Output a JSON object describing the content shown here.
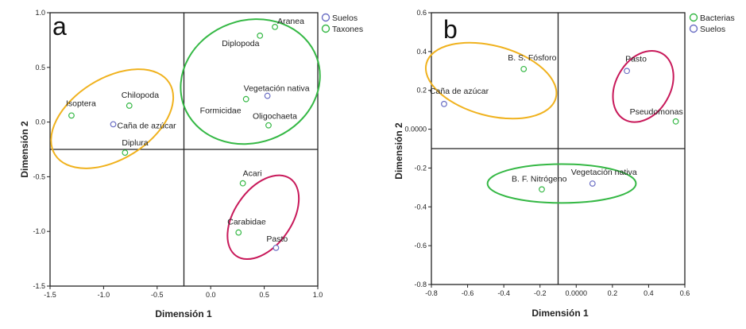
{
  "chart_data": [
    {
      "type": "scatter",
      "panel_label": "a",
      "xlabel": "Dimensión 1",
      "ylabel": "Dimensión 2",
      "xlim": [
        -1.5,
        1.0
      ],
      "ylim": [
        -1.5,
        1.0
      ],
      "xticks": [
        -1.5,
        -1.0,
        -0.5,
        0.0,
        0.5,
        1.0
      ],
      "xtick_labels": [
        "-1.5",
        "-1.0",
        "-0.5",
        "0.0",
        "0.5",
        "1.0"
      ],
      "yticks": [
        -1.5,
        -1.0,
        -0.5,
        0.0,
        0.5,
        1.0
      ],
      "ytick_labels": [
        "-1.5",
        "-1.0",
        "-0.5",
        "0.0",
        "0.5",
        "1.0"
      ],
      "reference_lines": {
        "x": -0.25,
        "y": -0.25
      },
      "legend": [
        {
          "name": "Suelos",
          "color": "#6b6fc4"
        },
        {
          "name": "Taxones",
          "color": "#35b845"
        }
      ],
      "legend_position": "top-right",
      "series": [
        {
          "name": "Suelos",
          "color": "#6b6fc4",
          "points": [
            {
              "label": "Vegetación nativa",
              "x": 0.53,
              "y": 0.24
            },
            {
              "label": "Caña de azúcar",
              "x": -0.91,
              "y": -0.02
            },
            {
              "label": "Pasto",
              "x": 0.61,
              "y": -1.15
            }
          ]
        },
        {
          "name": "Taxones",
          "color": "#35b845",
          "points": [
            {
              "label": "Aranea",
              "x": 0.6,
              "y": 0.87
            },
            {
              "label": "Diplopoda",
              "x": 0.46,
              "y": 0.79
            },
            {
              "label": "Formicidae",
              "x": 0.33,
              "y": 0.21
            },
            {
              "label": "Oligochaeta",
              "x": 0.54,
              "y": -0.03
            },
            {
              "label": "Isoptera",
              "x": -1.3,
              "y": 0.06
            },
            {
              "label": "Chilopoda",
              "x": -0.76,
              "y": 0.15
            },
            {
              "label": "Diplura",
              "x": -0.8,
              "y": -0.28
            },
            {
              "label": "Acari",
              "x": 0.3,
              "y": -0.56
            },
            {
              "label": "Carabidae",
              "x": 0.26,
              "y": -1.01
            }
          ]
        }
      ],
      "ellipses": [
        {
          "color": "#f0b21e",
          "cx": -0.92,
          "cy": 0.03,
          "rx": 0.63,
          "ry": 0.37,
          "angle": -32
        },
        {
          "color": "#35b845",
          "cx": 0.37,
          "cy": 0.37,
          "rx": 0.66,
          "ry": 0.56,
          "angle": -20
        },
        {
          "color": "#c8195a",
          "cx": 0.49,
          "cy": -0.87,
          "rx": 0.44,
          "ry": 0.26,
          "angle": -55
        }
      ]
    },
    {
      "type": "scatter",
      "panel_label": "b",
      "xlabel": "Dimensión 1",
      "ylabel": "Dimensión 2",
      "xlim": [
        -0.8,
        0.6
      ],
      "ylim": [
        -0.8,
        0.6
      ],
      "xticks": [
        -0.8,
        -0.6,
        -0.4,
        -0.2,
        0.0,
        0.2,
        0.4,
        0.6
      ],
      "xtick_labels": [
        "-0.8",
        "-0.6",
        "-0.4",
        "-0.2",
        "0.0000",
        "0.2",
        "0.4",
        "0.6"
      ],
      "yticks": [
        -0.8,
        -0.6,
        -0.4,
        -0.2,
        0.0,
        0.2,
        0.4,
        0.6
      ],
      "ytick_labels": [
        "-0.8",
        "-0.6",
        "-0.4",
        "-0.2",
        "0.0000",
        "0.2",
        "0.4",
        "0.6"
      ],
      "reference_lines": {
        "x": -0.1,
        "y": -0.1
      },
      "legend": [
        {
          "name": "Bacterias",
          "color": "#35b845"
        },
        {
          "name": "Suelos",
          "color": "#6b6fc4"
        }
      ],
      "legend_position": "top-right",
      "series": [
        {
          "name": "Bacterias",
          "color": "#35b845",
          "points": [
            {
              "label": "B. S. Fósforo",
              "x": -0.29,
              "y": 0.31
            },
            {
              "label": "Pseudomonas",
              "x": 0.55,
              "y": 0.04
            },
            {
              "label": "B. F. Nitrógeno",
              "x": -0.19,
              "y": -0.31
            }
          ]
        },
        {
          "name": "Suelos",
          "color": "#6b6fc4",
          "points": [
            {
              "label": "Caña de azúcar",
              "x": -0.73,
              "y": 0.13
            },
            {
              "label": "Pasto",
              "x": 0.28,
              "y": 0.3
            },
            {
              "label": "Vegetación nativa",
              "x": 0.09,
              "y": -0.28
            }
          ]
        }
      ],
      "ellipses": [
        {
          "color": "#f0b21e",
          "cx": -0.47,
          "cy": 0.25,
          "rx": 0.37,
          "ry": 0.18,
          "angle": 15
        },
        {
          "color": "#c8195a",
          "cx": 0.37,
          "cy": 0.22,
          "rx": 0.21,
          "ry": 0.14,
          "angle": -60
        },
        {
          "color": "#35b845",
          "cx": -0.08,
          "cy": -0.28,
          "rx": 0.41,
          "ry": 0.1,
          "angle": 0
        }
      ]
    }
  ]
}
